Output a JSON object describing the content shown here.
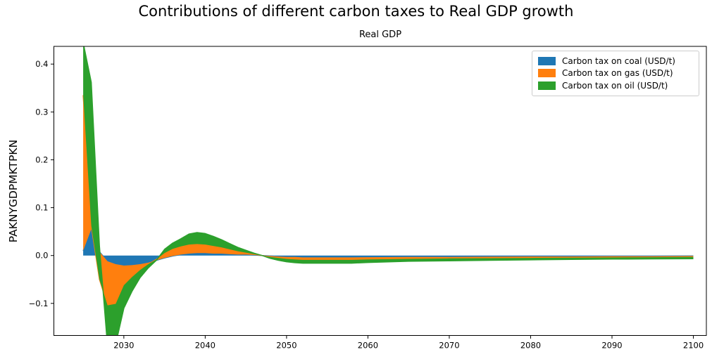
{
  "figure": {
    "title": "Contributions of different carbon taxes to Real GDP growth",
    "subtitle": "Real GDP"
  },
  "chart_data": {
    "type": "area",
    "stacked": true,
    "title": "Contributions of different carbon taxes to Real GDP growth",
    "subtitle": "Real GDP",
    "xlabel": "",
    "ylabel": "PAKNYGDPMKTPKN",
    "grid": false,
    "legend_position": "upper right",
    "xlim": [
      2021.4,
      2101.6
    ],
    "ylim": [
      -0.167,
      0.437
    ],
    "x_ticks": [
      2030,
      2040,
      2050,
      2060,
      2070,
      2080,
      2090,
      2100
    ],
    "x_tick_labels": [
      "2030",
      "2040",
      "2050",
      "2060",
      "2070",
      "2080",
      "2090",
      "2100"
    ],
    "y_ticks": [
      -0.1,
      0.0,
      0.1,
      0.2,
      0.3,
      0.4
    ],
    "y_tick_labels": [
      "−0.1",
      "0.0",
      "0.1",
      "0.2",
      "0.3",
      "0.4"
    ],
    "x": [
      2025,
      2026,
      2027,
      2028,
      2029,
      2030,
      2031,
      2032,
      2033,
      2034,
      2035,
      2036,
      2037,
      2038,
      2039,
      2040,
      2041,
      2042,
      2043,
      2044,
      2045,
      2046,
      2047,
      2048,
      2049,
      2050,
      2051,
      2052,
      2054,
      2056,
      2058,
      2060,
      2065,
      2070,
      2075,
      2080,
      2085,
      2090,
      2095,
      2100
    ],
    "series": [
      {
        "name": "Carbon tax on coal (USD/t)",
        "color": "#1f77b4",
        "values": [
          0.01,
          0.055,
          0.008,
          -0.012,
          -0.018,
          -0.021,
          -0.02,
          -0.018,
          -0.015,
          -0.01,
          -0.005,
          -0.001,
          0.002,
          0.004,
          0.005,
          0.005,
          0.004,
          0.004,
          0.003,
          0.002,
          0.002,
          0.001,
          0.0,
          -0.001,
          -0.002,
          -0.003,
          -0.003,
          -0.004,
          -0.004,
          -0.004,
          -0.004,
          -0.0035,
          -0.003,
          -0.003,
          -0.0025,
          -0.002,
          -0.002,
          -0.0015,
          -0.0015,
          -0.001
        ]
      },
      {
        "name": "Carbon tax on gas (USD/t)",
        "color": "#ff7f0e",
        "values": [
          0.325,
          0.007,
          -0.058,
          -0.092,
          -0.083,
          -0.041,
          -0.025,
          -0.012,
          -0.003,
          0.002,
          0.01,
          0.015,
          0.017,
          0.019,
          0.019,
          0.018,
          0.016,
          0.013,
          0.01,
          0.007,
          0.004,
          0.002,
          0.0,
          -0.002,
          -0.003,
          -0.004,
          -0.005,
          -0.005,
          -0.005,
          -0.005,
          -0.005,
          -0.0045,
          -0.004,
          -0.003,
          -0.003,
          -0.003,
          -0.0025,
          -0.0025,
          -0.002,
          -0.002
        ]
      },
      {
        "name": "Carbon tax on oil (USD/t)",
        "color": "#2ca02c",
        "values": [
          0.11,
          0.3,
          0.07,
          -0.086,
          -0.084,
          -0.048,
          -0.03,
          -0.016,
          -0.008,
          -0.002,
          0.008,
          0.012,
          0.016,
          0.022,
          0.024,
          0.023,
          0.02,
          0.016,
          0.012,
          0.008,
          0.005,
          0.002,
          0.0,
          -0.003,
          -0.005,
          -0.006,
          -0.007,
          -0.007,
          -0.007,
          -0.007,
          -0.007,
          -0.0065,
          -0.005,
          -0.005,
          -0.0045,
          -0.004,
          -0.0035,
          -0.0035,
          -0.0035,
          -0.0035
        ]
      }
    ]
  },
  "plot": {
    "frame_color": "#000000",
    "background": "#ffffff"
  }
}
